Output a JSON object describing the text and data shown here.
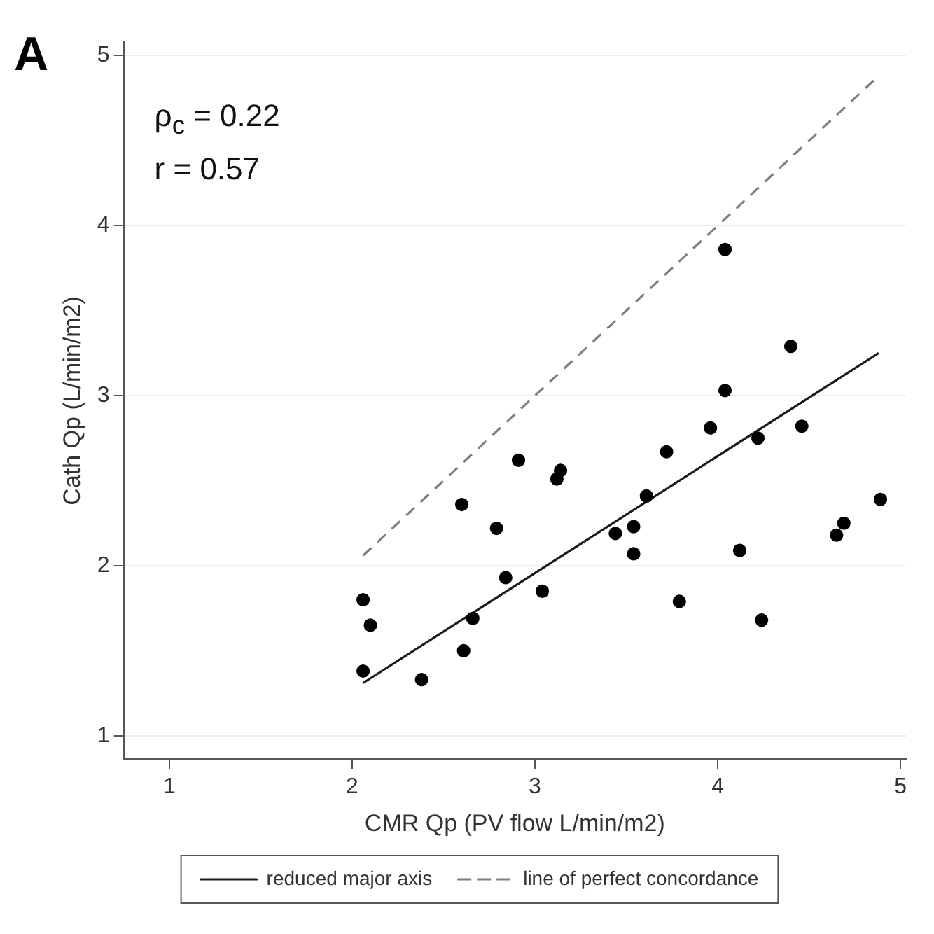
{
  "chart_data": {
    "type": "scatter",
    "title": "A",
    "xlabel": "CMR Qp (PV flow L/min/m2)",
    "ylabel": "Cath Qp (L/min/m2)",
    "annotations": [
      "ρ$_{c}$ = 0.22",
      "r = 0.57"
    ],
    "xlim": [
      0.75,
      5.03
    ],
    "xticks": [
      1,
      2,
      3,
      4,
      5
    ],
    "ylim": [
      0.86,
      5.08
    ],
    "yticks": [
      1,
      2,
      3,
      4,
      5
    ],
    "grid": "y",
    "legend": "bottom",
    "series": [
      {
        "type": "scatter",
        "color": "#000000",
        "marker": "circle",
        "x": [
          2.06,
          2.1,
          2.06,
          2.38,
          2.6,
          2.79,
          2.91,
          2.84,
          3.04,
          2.66,
          2.61,
          3.14,
          3.12,
          3.44,
          3.54,
          3.54,
          3.61,
          3.72,
          3.79,
          3.96,
          4.04,
          4.04,
          4.4,
          4.22,
          4.46,
          4.12,
          4.24,
          4.65,
          4.69,
          4.89
        ],
        "values": [
          1.8,
          1.65,
          1.38,
          1.33,
          2.36,
          2.22,
          2.62,
          1.93,
          1.85,
          1.69,
          1.5,
          2.56,
          2.51,
          2.19,
          2.23,
          2.07,
          2.41,
          2.67,
          1.79,
          2.81,
          3.03,
          3.86,
          3.29,
          2.75,
          2.82,
          2.09,
          1.68,
          2.18,
          2.25,
          2.39
        ]
      },
      {
        "type": "line",
        "name": "reduced major axis",
        "color": "#1a1a1a",
        "marker": "none",
        "line_style": "solid",
        "x": [
          2.06,
          4.88
        ],
        "values": [
          1.31,
          3.25
        ]
      },
      {
        "type": "line",
        "name": "line of perfect concordance",
        "color": "#7f7f7f",
        "marker": "none",
        "line_style": "dashed",
        "x": [
          2.06,
          4.86
        ],
        "values": [
          2.06,
          4.86
        ]
      }
    ]
  }
}
